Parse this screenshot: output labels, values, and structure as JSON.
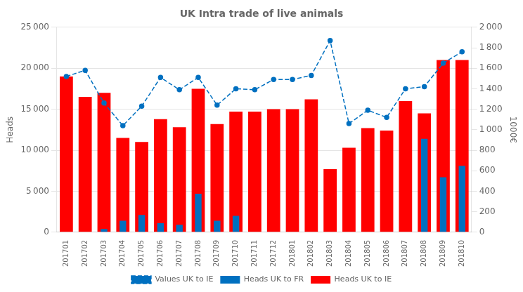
{
  "chart_data": {
    "type": "bar",
    "title": "UK Intra trade of live animals",
    "categories": [
      "201701",
      "201702",
      "201703",
      "201704",
      "201705",
      "201706",
      "201707",
      "201708",
      "201709",
      "201710",
      "201711",
      "201712",
      "201801",
      "201802",
      "201803",
      "201804",
      "201805",
      "201806",
      "201807",
      "201808",
      "201809",
      "201810"
    ],
    "series": [
      {
        "name": "Heads UK to IE",
        "color": "#FF0000",
        "values": [
          19000,
          16500,
          17000,
          11500,
          11000,
          13800,
          12800,
          17500,
          13200,
          14700,
          14700,
          15000,
          15000,
          16200,
          7700,
          10300,
          12700,
          12400,
          16000,
          14500,
          21000,
          21000
        ]
      },
      {
        "name": "Heads UK to FR",
        "color": "#0070C0",
        "values": [
          0,
          0,
          400,
          1400,
          2100,
          1100,
          900,
          4700,
          1400,
          2000,
          0,
          0,
          0,
          0,
          0,
          0,
          0,
          0,
          0,
          11400,
          6700,
          8100
        ]
      },
      {
        "name": "Values UK to IE",
        "color": "#0070C0",
        "type": "line",
        "axis": "y2",
        "line_style": "dashed",
        "marker": "circle",
        "values": [
          1520,
          1580,
          1260,
          1040,
          1230,
          1510,
          1390,
          1510,
          1240,
          1400,
          1390,
          1490,
          1490,
          1530,
          1870,
          1060,
          1190,
          1120,
          1400,
          1420,
          1650,
          1760
        ]
      }
    ],
    "ylabel": "Heads",
    "y2label": "1000€",
    "ylim": [
      0,
      25000
    ],
    "yticks": [
      0,
      {
        "value": 5000,
        "label": "5 000"
      },
      {
        "value": 10000,
        "label": "10 000"
      },
      {
        "value": 15000,
        "label": "15 000"
      },
      {
        "value": 20000,
        "label": "20 000"
      },
      {
        "value": 25000,
        "label": "25 000"
      }
    ],
    "y2lim": [
      0,
      2000
    ],
    "y2ticks": [
      0,
      200,
      400,
      600,
      800,
      {
        "value": 1000,
        "label": "1 000"
      },
      {
        "value": 1200,
        "label": "1 200"
      },
      {
        "value": 1400,
        "label": "1 400"
      },
      {
        "value": 1600,
        "label": "1 600"
      },
      {
        "value": 1800,
        "label": "1 800"
      },
      {
        "value": 2000,
        "label": "2 000"
      }
    ],
    "grid": true,
    "legend": "bottom"
  }
}
